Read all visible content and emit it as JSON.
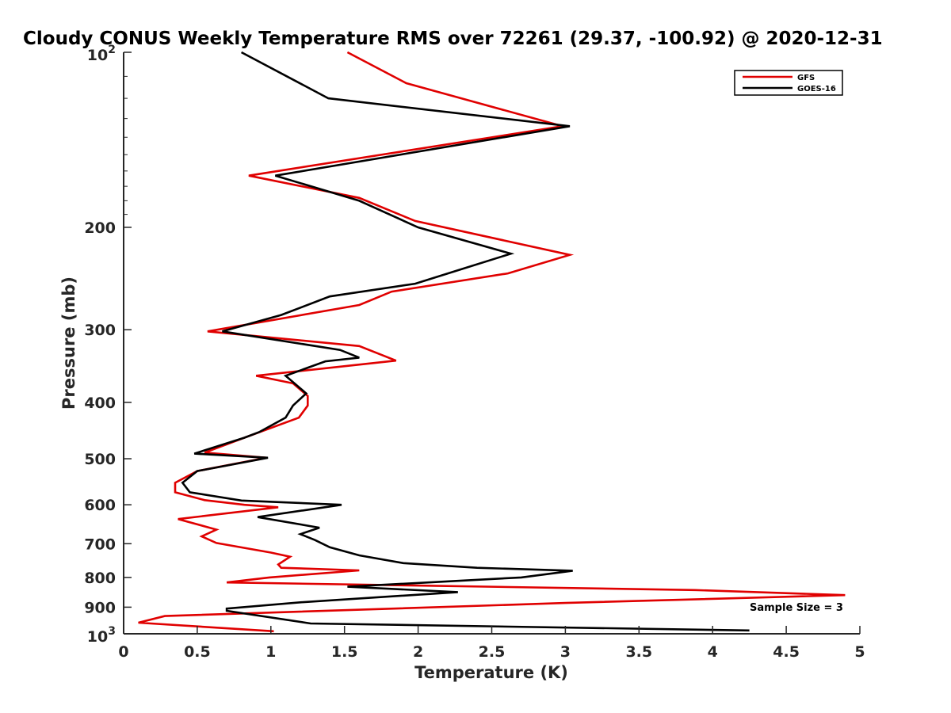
{
  "chart_data": {
    "type": "line",
    "title": "Cloudy CONUS Weekly Temperature RMS over 72261 (29.37, -100.92) @ 2020-12-31",
    "xlabel": "Temperature (K)",
    "ylabel": "Pressure (mb)",
    "xlim": [
      0,
      5
    ],
    "ylim": [
      100,
      1000
    ],
    "y_scale": "log",
    "y_reversed": true,
    "grid": false,
    "legend_position": "top-right",
    "x_ticks": [
      "0",
      "0.5",
      "1",
      "1.5",
      "2",
      "2.5",
      "3",
      "3.5",
      "4",
      "4.5",
      "5"
    ],
    "y_ticks": [
      {
        "value": 100,
        "label": "10",
        "sup": "2"
      },
      {
        "value": 200,
        "label": "200",
        "sup": ""
      },
      {
        "value": 300,
        "label": "300",
        "sup": ""
      },
      {
        "value": 400,
        "label": "400",
        "sup": ""
      },
      {
        "value": 500,
        "label": "500",
        "sup": ""
      },
      {
        "value": 600,
        "label": "600",
        "sup": ""
      },
      {
        "value": 700,
        "label": "700",
        "sup": ""
      },
      {
        "value": 800,
        "label": "800",
        "sup": ""
      },
      {
        "value": 900,
        "label": "900",
        "sup": ""
      },
      {
        "value": 1000,
        "label": "10",
        "sup": "3"
      }
    ],
    "annotation": "Sample Size = 3",
    "series": [
      {
        "name": "GFS",
        "color": "#e00000",
        "points": [
          [
            1.52,
            100
          ],
          [
            1.92,
            113
          ],
          [
            2.98,
            134
          ],
          [
            0.85,
            163
          ],
          [
            1.6,
            178
          ],
          [
            1.98,
            195
          ],
          [
            3.03,
            223
          ],
          [
            2.61,
            240
          ],
          [
            1.82,
            258
          ],
          [
            1.6,
            272
          ],
          [
            0.57,
            302
          ],
          [
            1.6,
            320
          ],
          [
            1.85,
            339
          ],
          [
            0.9,
            360
          ],
          [
            1.15,
            371
          ],
          [
            1.25,
            390
          ],
          [
            1.25,
            405
          ],
          [
            1.19,
            425
          ],
          [
            0.82,
            460
          ],
          [
            0.55,
            488
          ],
          [
            0.97,
            498
          ],
          [
            0.5,
            525
          ],
          [
            0.35,
            550
          ],
          [
            0.35,
            571
          ],
          [
            0.55,
            589
          ],
          [
            0.82,
            600
          ],
          [
            1.05,
            606
          ],
          [
            0.37,
            635
          ],
          [
            0.63,
            662
          ],
          [
            0.53,
            680
          ],
          [
            0.63,
            698
          ],
          [
            1.0,
            725
          ],
          [
            1.13,
            737
          ],
          [
            1.05,
            760
          ],
          [
            1.07,
            770
          ],
          [
            1.6,
            778
          ],
          [
            0.99,
            800
          ],
          [
            0.7,
            816
          ],
          [
            3.88,
            841
          ],
          [
            4.9,
            858
          ],
          [
            3.0,
            885
          ],
          [
            0.28,
            932
          ],
          [
            0.1,
            957
          ],
          [
            1.02,
            990
          ]
        ]
      },
      {
        "name": "GOES-16",
        "color": "#000000",
        "points": [
          [
            0.8,
            100
          ],
          [
            1.39,
            120
          ],
          [
            3.03,
            134
          ],
          [
            1.03,
            163
          ],
          [
            1.6,
            180
          ],
          [
            2.0,
            200
          ],
          [
            2.63,
            222
          ],
          [
            2.25,
            238
          ],
          [
            1.98,
            250
          ],
          [
            1.4,
            263
          ],
          [
            1.07,
            283
          ],
          [
            0.67,
            302
          ],
          [
            1.47,
            325
          ],
          [
            1.6,
            335
          ],
          [
            1.37,
            340
          ],
          [
            1.1,
            360
          ],
          [
            1.24,
            386
          ],
          [
            1.15,
            405
          ],
          [
            1.1,
            425
          ],
          [
            0.92,
            450
          ],
          [
            0.82,
            460
          ],
          [
            0.48,
            490
          ],
          [
            0.98,
            498
          ],
          [
            0.5,
            525
          ],
          [
            0.4,
            550
          ],
          [
            0.45,
            571
          ],
          [
            0.8,
            590
          ],
          [
            1.48,
            600
          ],
          [
            0.91,
            630
          ],
          [
            1.33,
            657
          ],
          [
            1.2,
            674
          ],
          [
            1.3,
            690
          ],
          [
            1.4,
            710
          ],
          [
            1.6,
            733
          ],
          [
            1.9,
            756
          ],
          [
            2.4,
            770
          ],
          [
            3.05,
            779
          ],
          [
            2.7,
            800
          ],
          [
            1.52,
            830
          ],
          [
            2.27,
            848
          ],
          [
            1.2,
            883
          ],
          [
            0.7,
            905
          ],
          [
            0.7,
            913
          ],
          [
            1.27,
            960
          ],
          [
            4.25,
            987
          ]
        ]
      }
    ]
  }
}
